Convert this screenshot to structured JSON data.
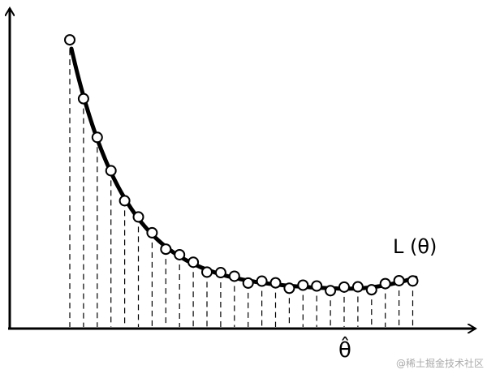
{
  "curve_label": "L (θ)",
  "x_marker": "θ̂",
  "watermark": "@稀土掘金技术社区"
}
